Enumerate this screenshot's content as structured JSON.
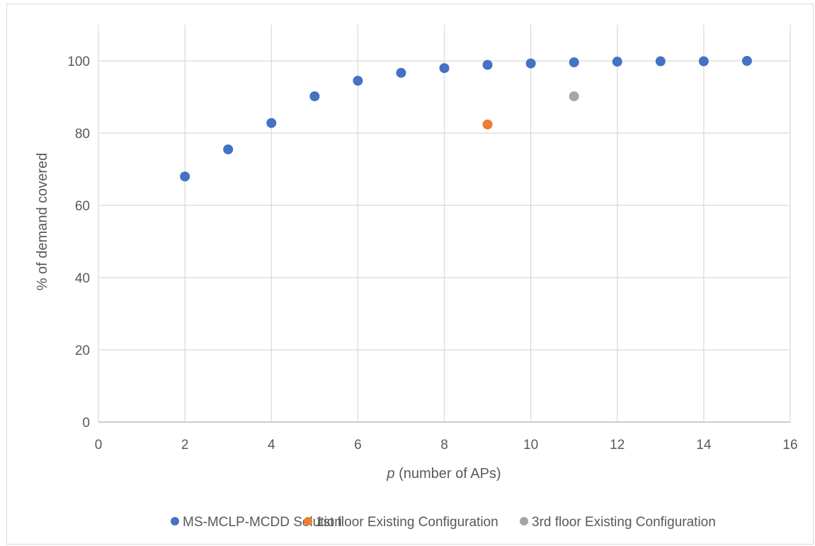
{
  "chart_data": {
    "type": "scatter",
    "title": "",
    "xlabel_italic": "p",
    "xlabel_rest": " (number of APs)",
    "ylabel": "% of demand covered",
    "xlim": [
      0,
      16
    ],
    "ylim": [
      0,
      110
    ],
    "x_ticks": [
      0,
      2,
      4,
      6,
      8,
      10,
      12,
      14,
      16
    ],
    "y_ticks": [
      0,
      20,
      40,
      60,
      80,
      100
    ],
    "grid": true,
    "legend_position": "bottom",
    "series": [
      {
        "name": "MS-MCLP-MCDD Solution",
        "color": "#4472c4",
        "x": [
          2,
          3,
          4,
          5,
          6,
          7,
          8,
          9,
          10,
          11,
          12,
          13,
          14,
          15
        ],
        "y": [
          68,
          75.5,
          82.8,
          90.2,
          94.5,
          96.7,
          98,
          98.9,
          99.3,
          99.6,
          99.8,
          99.9,
          99.9,
          100
        ]
      },
      {
        "name": "1st floor Existing Configuration",
        "color": "#ed7d31",
        "x": [
          9
        ],
        "y": [
          82.4
        ]
      },
      {
        "name": "3rd floor Existing Configuration",
        "color": "#a5a5a5",
        "x": [
          11
        ],
        "y": [
          90.2
        ]
      }
    ]
  }
}
